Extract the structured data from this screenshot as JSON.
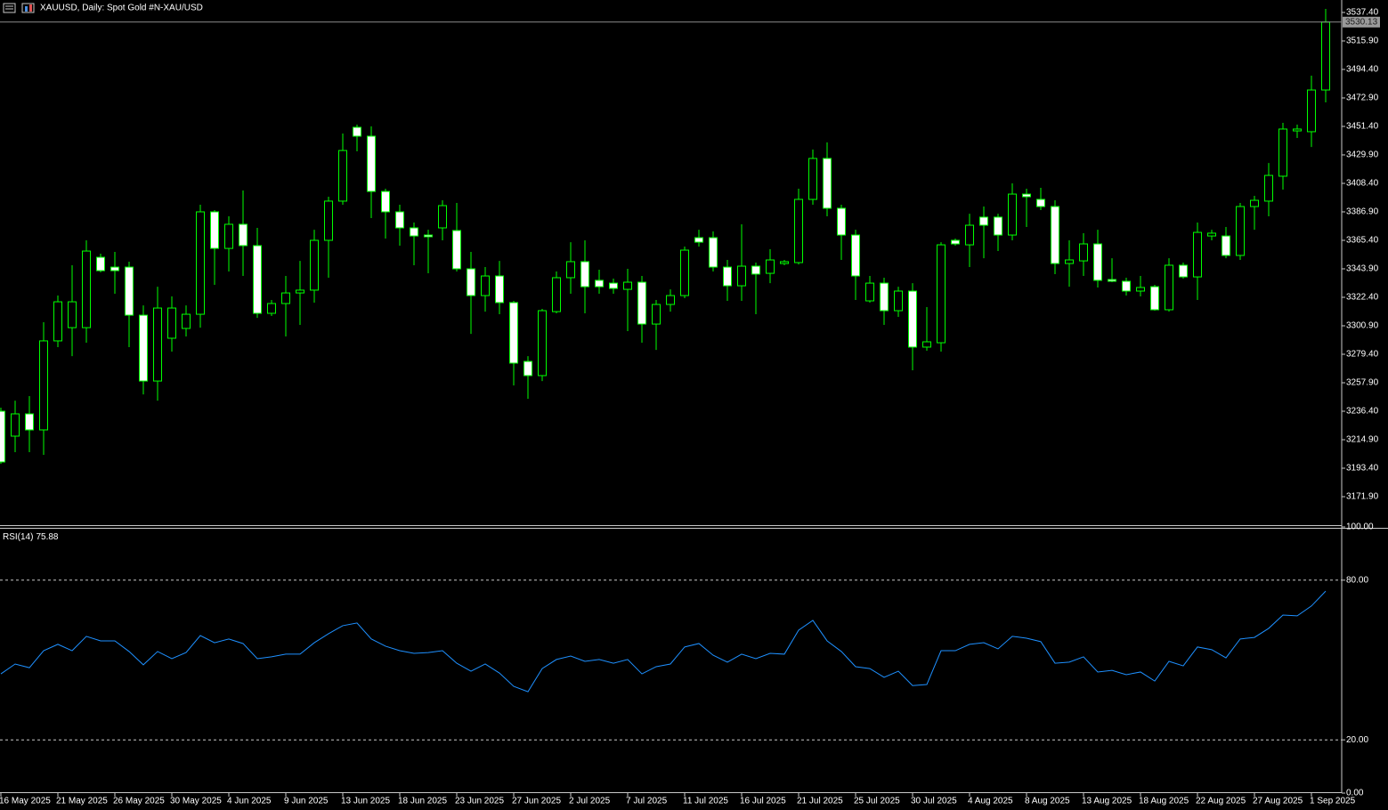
{
  "chart_data": [
    {
      "type": "candlestick",
      "title": "XAUUSD, Daily:  Spot Gold #N-XAU/USD",
      "categories": [
        "16 May 2025",
        null,
        null,
        null,
        "21 May 2025",
        null,
        null,
        null,
        "26 May 2025",
        null,
        null,
        null,
        "30 May 2025",
        null,
        null,
        null,
        "4 Jun 2025",
        null,
        null,
        null,
        "9 Jun 2025",
        null,
        null,
        null,
        "13 Jun 2025",
        null,
        null,
        null,
        "18 Jun 2025",
        null,
        null,
        null,
        "23 Jun 2025",
        null,
        null,
        null,
        "27 Jun 2025",
        null,
        null,
        null,
        "2 Jul 2025",
        null,
        null,
        null,
        "7 Jul 2025",
        null,
        null,
        null,
        "11 Jul 2025",
        null,
        null,
        null,
        "16 Jul 2025",
        null,
        null,
        null,
        "21 Jul 2025",
        null,
        null,
        null,
        "25 Jul 2025",
        null,
        null,
        null,
        "30 Jul 2025",
        null,
        null,
        null,
        "4 Aug 2025",
        null,
        null,
        null,
        "8 Aug 2025",
        null,
        null,
        null,
        "13 Aug 2025",
        null,
        null,
        null,
        "18 Aug 2025",
        null,
        null,
        null,
        "22 Aug 2025",
        null,
        null,
        null,
        "27 Aug 2025",
        null,
        null,
        null,
        "1 Sep 2025",
        null
      ],
      "open": [
        3236.4,
        3217.6,
        3234.4,
        3222.3,
        3289.5,
        3299.5,
        3299.5,
        3352.6,
        3345.2,
        3345.2,
        3308.9,
        3259.2,
        3291.5,
        3298.9,
        3309.6,
        3386.9,
        3359.3,
        3377.5,
        3361.4,
        3310.3,
        3317.7,
        3325.7,
        3327.8,
        3365.4,
        3395.0,
        3450.7,
        3444.0,
        3402.3,
        3386.9,
        3374.8,
        3369.4,
        3374.8,
        3372.8,
        3343.9,
        3323.7,
        3338.5,
        3318.4,
        3274.0,
        3263.3,
        3311.6,
        3337.2,
        3349.3,
        3335.2,
        3333.1,
        3328.4,
        3333.8,
        3302.2,
        3317.0,
        3323.7,
        3367.4,
        3367.4,
        3345.2,
        3331.1,
        3345.9,
        3340.5,
        3347.9,
        3348.6,
        3396.3,
        3427.2,
        3389.6,
        3369.4,
        3319.7,
        3333.1,
        3312.3,
        3327.1,
        3284.8,
        3288.1,
        3365.4,
        3362.0,
        3382.9,
        3382.9,
        3369.4,
        3400.3,
        3396.3,
        3390.9,
        3347.9,
        3349.9,
        3362.7,
        3335.8,
        3334.5,
        3327.1,
        3330.4,
        3313.0,
        3346.6,
        3337.8,
        3368.7,
        3368.7,
        3354.0,
        3390.9,
        3395.0,
        3413.8,
        3448.0,
        3447.4,
        3478.9
      ],
      "high": [
        3239.1,
        3244.4,
        3247.8,
        3303.6,
        3323.7,
        3346.6,
        3365.4,
        3355.3,
        3356.7,
        3349.3,
        3316.3,
        3330.4,
        3323.1,
        3316.3,
        3392.3,
        3388.2,
        3383.5,
        3403.0,
        3374.8,
        3320.4,
        3338.5,
        3349.9,
        3373.4,
        3398.3,
        3446.0,
        3452.7,
        3451.4,
        3404.4,
        3392.3,
        3378.8,
        3373.4,
        3395.6,
        3393.6,
        3356.7,
        3345.2,
        3349.9,
        3319.7,
        3278.0,
        3313.7,
        3341.9,
        3364.0,
        3365.4,
        3343.2,
        3336.5,
        3343.9,
        3338.5,
        3320.4,
        3328.4,
        3360.7,
        3373.4,
        3372.1,
        3350.6,
        3377.5,
        3348.6,
        3358.7,
        3350.6,
        3404.4,
        3433.9,
        3439.3,
        3392.3,
        3373.4,
        3338.5,
        3337.2,
        3330.4,
        3333.1,
        3315.0,
        3364.0,
        3366.7,
        3385.5,
        3390.9,
        3385.5,
        3408.4,
        3404.4,
        3405.0,
        3395.6,
        3365.4,
        3370.8,
        3373.4,
        3351.9,
        3337.2,
        3338.5,
        3331.8,
        3351.9,
        3348.6,
        3378.8,
        3373.4,
        3375.5,
        3393.6,
        3399.0,
        3423.8,
        3454.1,
        3452.7,
        3489.7,
        3540.1
      ],
      "low": [
        3196.7,
        3205.5,
        3205.5,
        3203.5,
        3284.8,
        3278.0,
        3288.1,
        3341.2,
        3325.1,
        3284.8,
        3249.1,
        3244.4,
        3281.4,
        3292.8,
        3299.5,
        3331.8,
        3341.9,
        3338.5,
        3306.9,
        3308.3,
        3292.8,
        3301.6,
        3318.4,
        3337.2,
        3392.3,
        3432.6,
        3382.2,
        3366.7,
        3361.4,
        3346.6,
        3340.5,
        3365.4,
        3341.9,
        3294.8,
        3311.6,
        3309.6,
        3255.9,
        3245.8,
        3259.2,
        3310.3,
        3325.1,
        3310.3,
        3325.1,
        3325.1,
        3296.9,
        3288.1,
        3282.7,
        3311.6,
        3321.7,
        3360.7,
        3341.9,
        3319.7,
        3319.7,
        3309.6,
        3333.1,
        3346.6,
        3347.2,
        3392.3,
        3383.5,
        3350.6,
        3320.4,
        3318.4,
        3301.6,
        3307.6,
        3267.3,
        3282.1,
        3281.4,
        3361.4,
        3345.2,
        3351.9,
        3357.3,
        3365.4,
        3375.5,
        3388.2,
        3339.9,
        3330.4,
        3338.5,
        3329.8,
        3333.8,
        3323.7,
        3323.1,
        3312.3,
        3311.6,
        3336.5,
        3320.4,
        3365.4,
        3351.9,
        3350.6,
        3373.4,
        3383.5,
        3403.7,
        3442.7,
        3435.9,
        3469.5
      ],
      "close": [
        3198.1,
        3234.4,
        3222.3,
        3289.5,
        3319.0,
        3319.0,
        3357.3,
        3342.5,
        3342.5,
        3308.9,
        3259.2,
        3314.3,
        3314.3,
        3309.6,
        3386.9,
        3359.3,
        3377.5,
        3361.4,
        3310.3,
        3317.7,
        3325.7,
        3327.8,
        3365.4,
        3395.0,
        3433.2,
        3444.0,
        3402.3,
        3386.9,
        3374.8,
        3368.7,
        3368.1,
        3391.6,
        3343.9,
        3323.7,
        3338.5,
        3318.4,
        3272.7,
        3263.3,
        3312.3,
        3337.2,
        3349.3,
        3330.4,
        3330.4,
        3329.1,
        3333.8,
        3302.2,
        3317.0,
        3323.7,
        3358.0,
        3364.0,
        3345.2,
        3331.1,
        3345.9,
        3339.9,
        3350.6,
        3349.3,
        3396.3,
        3427.2,
        3389.6,
        3369.4,
        3338.5,
        3333.1,
        3312.3,
        3327.1,
        3284.8,
        3288.8,
        3362.0,
        3362.7,
        3376.8,
        3376.8,
        3369.4,
        3400.3,
        3398.3,
        3390.9,
        3347.9,
        3350.6,
        3362.7,
        3335.2,
        3334.5,
        3327.1,
        3329.8,
        3313.0,
        3346.6,
        3337.8,
        3371.4,
        3370.8,
        3354.0,
        3390.9,
        3395.6,
        3414.4,
        3449.4,
        3449.4,
        3478.9,
        3530.13
      ],
      "color": "#00ff00",
      "bull_fill": "#000000",
      "bear_fill": "#ffffff",
      "ylim": [
        3150.4,
        3546.8
      ],
      "yticks": [
        {
          "value": 3537.4,
          "label": "3537.40"
        },
        {
          "value": 3515.9,
          "label": "3515.90"
        },
        {
          "value": 3494.4,
          "label": "3494.40"
        },
        {
          "value": 3472.9,
          "label": "3472.90"
        },
        {
          "value": 3451.4,
          "label": "3451.40"
        },
        {
          "value": 3429.9,
          "label": "3429.90"
        },
        {
          "value": 3408.4,
          "label": "3408.40"
        },
        {
          "value": 3386.9,
          "label": "3386.90"
        },
        {
          "value": 3365.4,
          "label": "3365.40"
        },
        {
          "value": 3343.9,
          "label": "3343.90"
        },
        {
          "value": 3322.4,
          "label": "3322.40"
        },
        {
          "value": 3300.9,
          "label": "3300.90"
        },
        {
          "value": 3279.4,
          "label": "3279.40"
        },
        {
          "value": 3257.9,
          "label": "3257.90"
        },
        {
          "value": 3236.4,
          "label": "3236.40"
        },
        {
          "value": 3214.9,
          "label": "3214.90"
        },
        {
          "value": 3193.4,
          "label": "3193.40"
        },
        {
          "value": 3171.9,
          "label": "3171.90"
        }
      ]
    },
    {
      "type": "line",
      "title": "RSI(14)",
      "values": [
        44.8,
        48.5,
        47.1,
        53.5,
        55.9,
        53.5,
        58.9,
        57.2,
        57.2,
        53.2,
        48.2,
        53.2,
        50.5,
        52.8,
        59.2,
        56.5,
        57.9,
        56.2,
        50.5,
        51.2,
        52.2,
        52.2,
        56.5,
        59.9,
        62.9,
        63.9,
        57.9,
        55.2,
        53.5,
        52.5,
        52.8,
        53.5,
        48.8,
        45.8,
        48.5,
        45.1,
        40.1,
        38.1,
        46.8,
        50.2,
        51.5,
        49.5,
        50.2,
        48.8,
        50.2,
        44.8,
        47.5,
        48.5,
        54.9,
        56.2,
        51.8,
        49.2,
        52.2,
        50.5,
        52.5,
        52.2,
        61.2,
        64.9,
        57.2,
        53.2,
        47.5,
        46.8,
        43.5,
        45.8,
        40.4,
        40.8,
        53.5,
        53.5,
        55.9,
        56.5,
        54.2,
        58.9,
        58.2,
        56.9,
        48.8,
        49.2,
        51.2,
        45.5,
        46.1,
        44.5,
        45.5,
        42.1,
        49.5,
        47.8,
        54.9,
        53.9,
        50.8,
        57.9,
        58.5,
        61.9,
        66.9,
        66.6,
        70.3,
        75.88
      ],
      "color": "#1e90ff",
      "levels": [
        80,
        20
      ],
      "ylim": [
        0,
        100
      ],
      "yticks": [
        {
          "value": 100,
          "label": "100.00"
        },
        {
          "value": 80,
          "label": "80.00"
        },
        {
          "value": 20,
          "label": "20.00"
        },
        {
          "value": 0,
          "label": "0.00"
        }
      ]
    }
  ]
}
